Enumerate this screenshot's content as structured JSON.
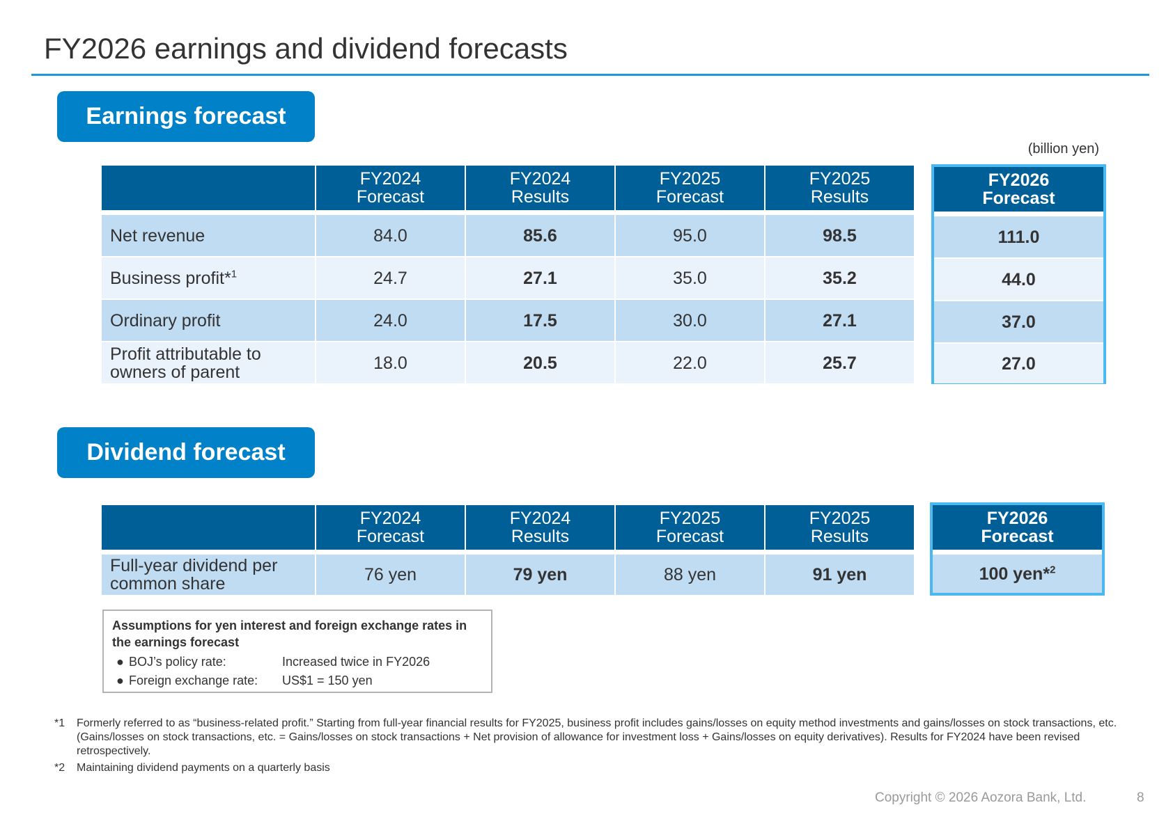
{
  "title": "FY2026 earnings and dividend forecasts",
  "earnings": {
    "section_label": "Earnings forecast",
    "unit": "(billion yen)",
    "columns": [
      {
        "line1": "FY2024",
        "line2": "Forecast"
      },
      {
        "line1": "FY2024",
        "line2": "Results"
      },
      {
        "line1": "FY2025",
        "line2": "Forecast"
      },
      {
        "line1": "FY2025",
        "line2": "Results"
      }
    ],
    "highlight_header": {
      "line1": "FY2026",
      "line2": "Forecast"
    },
    "rows": [
      {
        "label": "Net revenue",
        "sup": "",
        "values": [
          "84.0",
          "85.6",
          "95.0",
          "98.5"
        ],
        "fy2026": "111.0"
      },
      {
        "label": "Business profit*",
        "sup": "1",
        "values": [
          "24.7",
          "27.1",
          "35.0",
          "35.2"
        ],
        "fy2026": "44.0"
      },
      {
        "label": "Ordinary profit",
        "sup": "",
        "values": [
          "24.0",
          "17.5",
          "30.0",
          "27.1"
        ],
        "fy2026": "37.0"
      },
      {
        "label": "Profit attributable to owners of parent",
        "sup": "",
        "values": [
          "18.0",
          "20.5",
          "22.0",
          "25.7"
        ],
        "fy2026": "27.0"
      }
    ]
  },
  "dividend": {
    "section_label": "Dividend forecast",
    "columns": [
      {
        "line1": "FY2024",
        "line2": "Forecast"
      },
      {
        "line1": "FY2024",
        "line2": "Results"
      },
      {
        "line1": "FY2025",
        "line2": "Forecast"
      },
      {
        "line1": "FY2025",
        "line2": "Results"
      }
    ],
    "highlight_header": {
      "line1": "FY2026",
      "line2": "Forecast"
    },
    "row": {
      "label": "Full-year dividend per common share",
      "values": [
        "76 yen",
        "79 yen",
        "88 yen",
        "91 yen"
      ],
      "fy2026": "100 yen*",
      "fy2026_sup": "2"
    }
  },
  "assumptions": {
    "title": "Assumptions for yen interest and foreign exchange rates in the earnings forecast",
    "items": [
      {
        "key": "BOJ’s policy rate:",
        "value": "Increased twice in FY2026"
      },
      {
        "key": "Foreign exchange rate:",
        "value": "US$1 = 150 yen"
      }
    ]
  },
  "notes": [
    {
      "mark": "*1",
      "text": "Formerly referred to as “business-related profit.” Starting from full-year financial results for FY2025, business profit includes gains/losses on equity method investments and gains/losses on stock transactions, etc. (Gains/losses on stock transactions, etc. = Gains/losses on stock transactions + Net provision of allowance for investment loss + Gains/losses on equity derivatives). Results for FY2024 have been revised retrospectively."
    },
    {
      "mark": "*2",
      "text": "Maintaining dividend payments on a quarterly basis"
    }
  ],
  "footer": {
    "copyright": "Copyright © 2026 Aozora Bank, Ltd.",
    "page": "8"
  }
}
